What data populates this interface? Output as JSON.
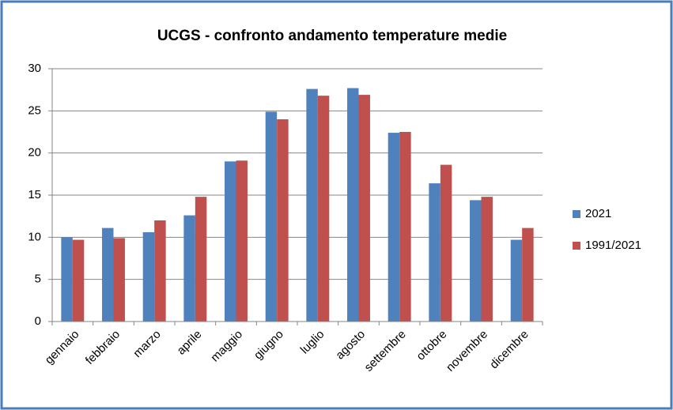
{
  "chart_data": {
    "type": "bar",
    "title": "UCGS - confronto andamento temperature medie",
    "categories": [
      "gennaio",
      "febbraio",
      "marzo",
      "aprile",
      "maggio",
      "giugno",
      "luglio",
      "agosto",
      "settembre",
      "ottobre",
      "novembre",
      "dicembre"
    ],
    "series": [
      {
        "name": "2021",
        "color": "#4f81bd",
        "values": [
          10.0,
          11.1,
          10.6,
          12.6,
          19.0,
          24.9,
          27.6,
          27.7,
          22.4,
          16.4,
          14.4,
          9.7
        ]
      },
      {
        "name": "1991/2021",
        "color": "#c0504d",
        "values": [
          9.7,
          9.9,
          12.0,
          14.8,
          19.1,
          24.0,
          26.8,
          26.9,
          22.5,
          18.6,
          14.8,
          11.1
        ]
      }
    ],
    "ylim": [
      0,
      30
    ],
    "yticks": [
      0,
      5,
      10,
      15,
      20,
      25,
      30
    ],
    "grid": true,
    "legend": "right"
  }
}
